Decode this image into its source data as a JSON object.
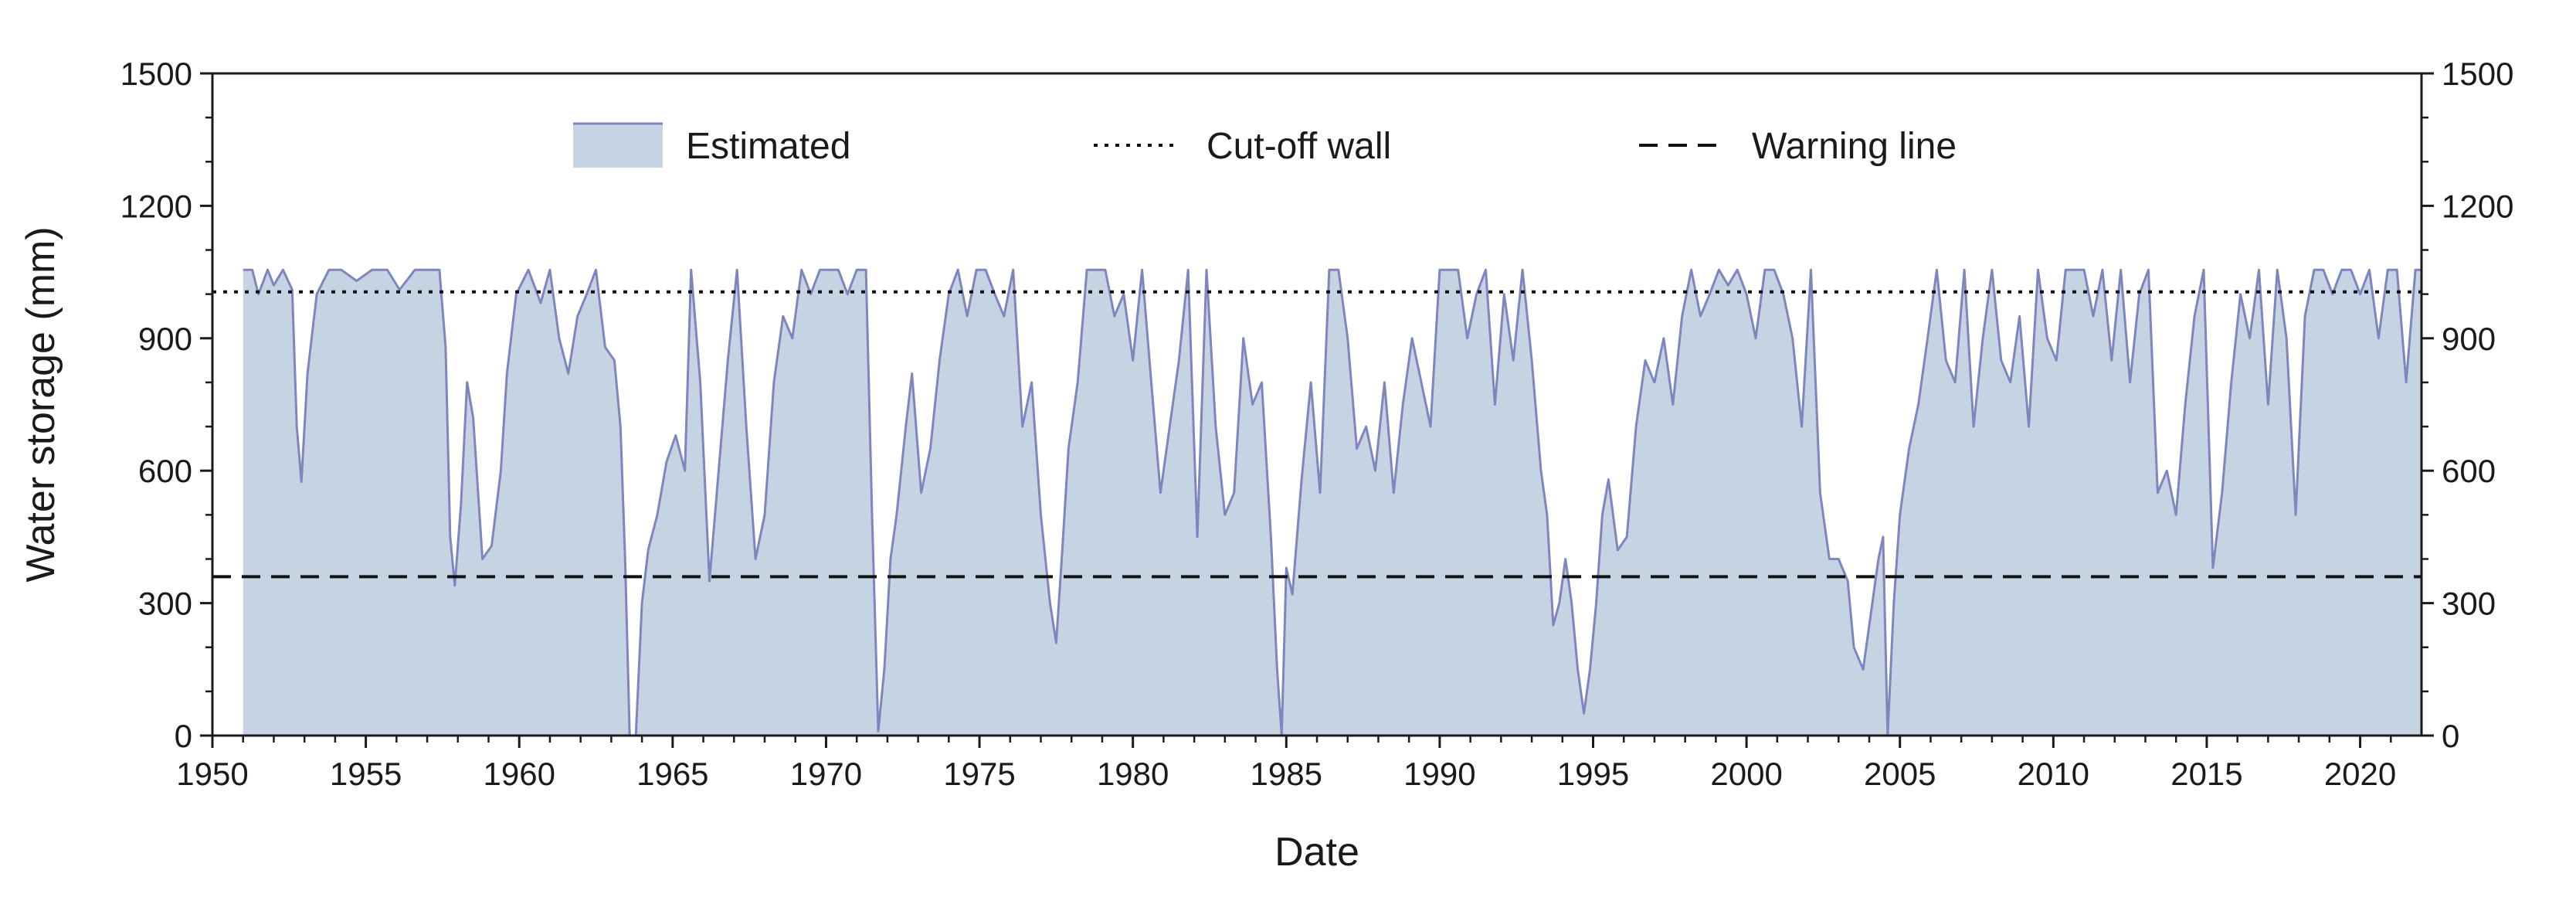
{
  "chart_data": {
    "type": "area",
    "xlabel": "Date",
    "ylabel": "Water storage (mm)",
    "xlim": [
      1950,
      2022
    ],
    "ylim": [
      0,
      1500
    ],
    "x_ticks": [
      "1950",
      "1955",
      "1960",
      "1965",
      "1970",
      "1975",
      "1980",
      "1985",
      "1990",
      "1995",
      "2000",
      "2005",
      "2010",
      "2015",
      "2020"
    ],
    "y_ticks": [
      "0",
      "300",
      "600",
      "900",
      "1200",
      "1500"
    ],
    "grid": false,
    "legend_placement": "top",
    "colors": {
      "fill": "#c5d3e3",
      "line": "#7f86bf",
      "reference": "#111111"
    },
    "series": [
      {
        "name": "Estimated",
        "x": [
          1951.0,
          1951.3,
          1951.5,
          1951.8,
          1952.0,
          1952.3,
          1952.6,
          1952.75,
          1952.9,
          1953.1,
          1953.4,
          1953.8,
          1954.2,
          1954.7,
          1955.2,
          1955.7,
          1956.1,
          1956.6,
          1957.0,
          1957.4,
          1957.6,
          1957.75,
          1957.9,
          1958.1,
          1958.3,
          1958.5,
          1958.8,
          1959.1,
          1959.4,
          1959.6,
          1959.9,
          1960.3,
          1960.7,
          1961.0,
          1961.3,
          1961.6,
          1961.9,
          1962.2,
          1962.5,
          1962.8,
          1963.1,
          1963.3,
          1963.45,
          1963.6,
          1963.8,
          1964.0,
          1964.2,
          1964.5,
          1964.8,
          1965.1,
          1965.4,
          1965.6,
          1965.9,
          1966.2,
          1966.5,
          1966.8,
          1967.1,
          1967.4,
          1967.7,
          1968.0,
          1968.3,
          1968.6,
          1968.9,
          1969.2,
          1969.5,
          1969.8,
          1970.1,
          1970.4,
          1970.7,
          1971.0,
          1971.3,
          1971.5,
          1971.7,
          1971.9,
          1972.1,
          1972.3,
          1972.6,
          1972.8,
          1973.1,
          1973.4,
          1973.7,
          1974.0,
          1974.3,
          1974.6,
          1974.9,
          1975.2,
          1975.5,
          1975.8,
          1976.1,
          1976.4,
          1976.7,
          1977.0,
          1977.3,
          1977.5,
          1977.7,
          1977.9,
          1978.2,
          1978.5,
          1978.8,
          1979.1,
          1979.4,
          1979.7,
          1980.0,
          1980.3,
          1980.6,
          1980.9,
          1981.2,
          1981.5,
          1981.8,
          1982.1,
          1982.4,
          1982.7,
          1983.0,
          1983.3,
          1983.6,
          1983.9,
          1984.2,
          1984.5,
          1984.7,
          1984.85,
          1985.0,
          1985.2,
          1985.5,
          1985.8,
          1986.1,
          1986.4,
          1986.7,
          1987.0,
          1987.3,
          1987.6,
          1987.9,
          1988.2,
          1988.5,
          1988.8,
          1989.1,
          1989.4,
          1989.7,
          1990.0,
          1990.3,
          1990.6,
          1990.9,
          1991.2,
          1991.5,
          1991.8,
          1992.1,
          1992.4,
          1992.7,
          1993.0,
          1993.3,
          1993.5,
          1993.7,
          1993.9,
          1994.1,
          1994.3,
          1994.5,
          1994.7,
          1994.9,
          1995.1,
          1995.3,
          1995.5,
          1995.8,
          1996.1,
          1996.4,
          1996.7,
          1997.0,
          1997.3,
          1997.6,
          1997.9,
          1998.2,
          1998.5,
          1998.8,
          1999.1,
          1999.4,
          1999.7,
          2000.0,
          2000.3,
          2000.6,
          2000.9,
          2001.2,
          2001.5,
          2001.8,
          2002.1,
          2002.4,
          2002.7,
          2003.0,
          2003.3,
          2003.5,
          2003.8,
          2004.1,
          2004.3,
          2004.45,
          2004.6,
          2004.8,
          2005.0,
          2005.3,
          2005.6,
          2005.9,
          2006.2,
          2006.5,
          2006.8,
          2007.1,
          2007.4,
          2007.7,
          2008.0,
          2008.3,
          2008.6,
          2008.9,
          2009.2,
          2009.5,
          2009.8,
          2010.1,
          2010.4,
          2010.7,
          2011.0,
          2011.3,
          2011.6,
          2011.9,
          2012.2,
          2012.5,
          2012.8,
          2013.1,
          2013.4,
          2013.7,
          2014.0,
          2014.3,
          2014.6,
          2014.9,
          2015.2,
          2015.5,
          2015.8,
          2016.1,
          2016.4,
          2016.7,
          2017.0,
          2017.3,
          2017.6,
          2017.9,
          2018.2,
          2018.5,
          2018.8,
          2019.1,
          2019.4,
          2019.7,
          2020.0,
          2020.3,
          2020.6,
          2020.9,
          2021.2,
          2021.5,
          2021.8,
          2022.0
        ],
        "values": [
          1055,
          1055,
          1000,
          1055,
          1020,
          1055,
          1010,
          700,
          575,
          820,
          1000,
          1055,
          1055,
          1030,
          1055,
          1055,
          1010,
          1055,
          1055,
          1055,
          880,
          450,
          340,
          520,
          800,
          720,
          400,
          430,
          600,
          820,
          1000,
          1055,
          980,
          1055,
          900,
          820,
          950,
          1000,
          1055,
          880,
          850,
          700,
          400,
          0,
          0,
          300,
          420,
          500,
          620,
          680,
          600,
          1055,
          800,
          350,
          600,
          850,
          1055,
          700,
          400,
          500,
          800,
          950,
          900,
          1055,
          1000,
          1055,
          1055,
          1055,
          1000,
          1055,
          1055,
          500,
          10,
          150,
          400,
          500,
          700,
          820,
          550,
          650,
          850,
          1000,
          1055,
          950,
          1055,
          1055,
          1000,
          950,
          1055,
          700,
          800,
          500,
          300,
          210,
          420,
          650,
          800,
          1055,
          1055,
          1055,
          950,
          1000,
          850,
          1055,
          800,
          550,
          700,
          850,
          1055,
          450,
          1055,
          700,
          500,
          550,
          900,
          750,
          800,
          450,
          150,
          0,
          380,
          320,
          580,
          800,
          550,
          1055,
          1055,
          900,
          650,
          700,
          600,
          800,
          550,
          750,
          900,
          800,
          700,
          1055,
          1055,
          1055,
          900,
          1000,
          1055,
          750,
          1000,
          850,
          1055,
          850,
          600,
          500,
          250,
          300,
          400,
          300,
          150,
          50,
          150,
          300,
          500,
          580,
          420,
          450,
          700,
          850,
          800,
          900,
          750,
          950,
          1055,
          950,
          1000,
          1055,
          1020,
          1055,
          1000,
          900,
          1055,
          1055,
          1000,
          900,
          700,
          1055,
          550,
          400,
          400,
          350,
          200,
          150,
          300,
          400,
          450,
          0,
          300,
          500,
          650,
          750,
          900,
          1055,
          850,
          800,
          1055,
          700,
          900,
          1055,
          850,
          800,
          950,
          700,
          1055,
          900,
          850,
          1055,
          1055,
          1055,
          950,
          1055,
          850,
          1055,
          800,
          1000,
          1055,
          550,
          600,
          500,
          750,
          950,
          1055,
          380,
          550,
          800,
          1000,
          900,
          1055,
          750,
          1055,
          900,
          500,
          950,
          1055,
          1055,
          1000,
          1055,
          1055,
          1000,
          1055,
          900,
          1055,
          1055,
          800,
          1055,
          1055
        ]
      },
      {
        "name": "Cut-off wall",
        "value": 1005
      },
      {
        "name": "Warning line",
        "value": 360
      }
    ]
  }
}
